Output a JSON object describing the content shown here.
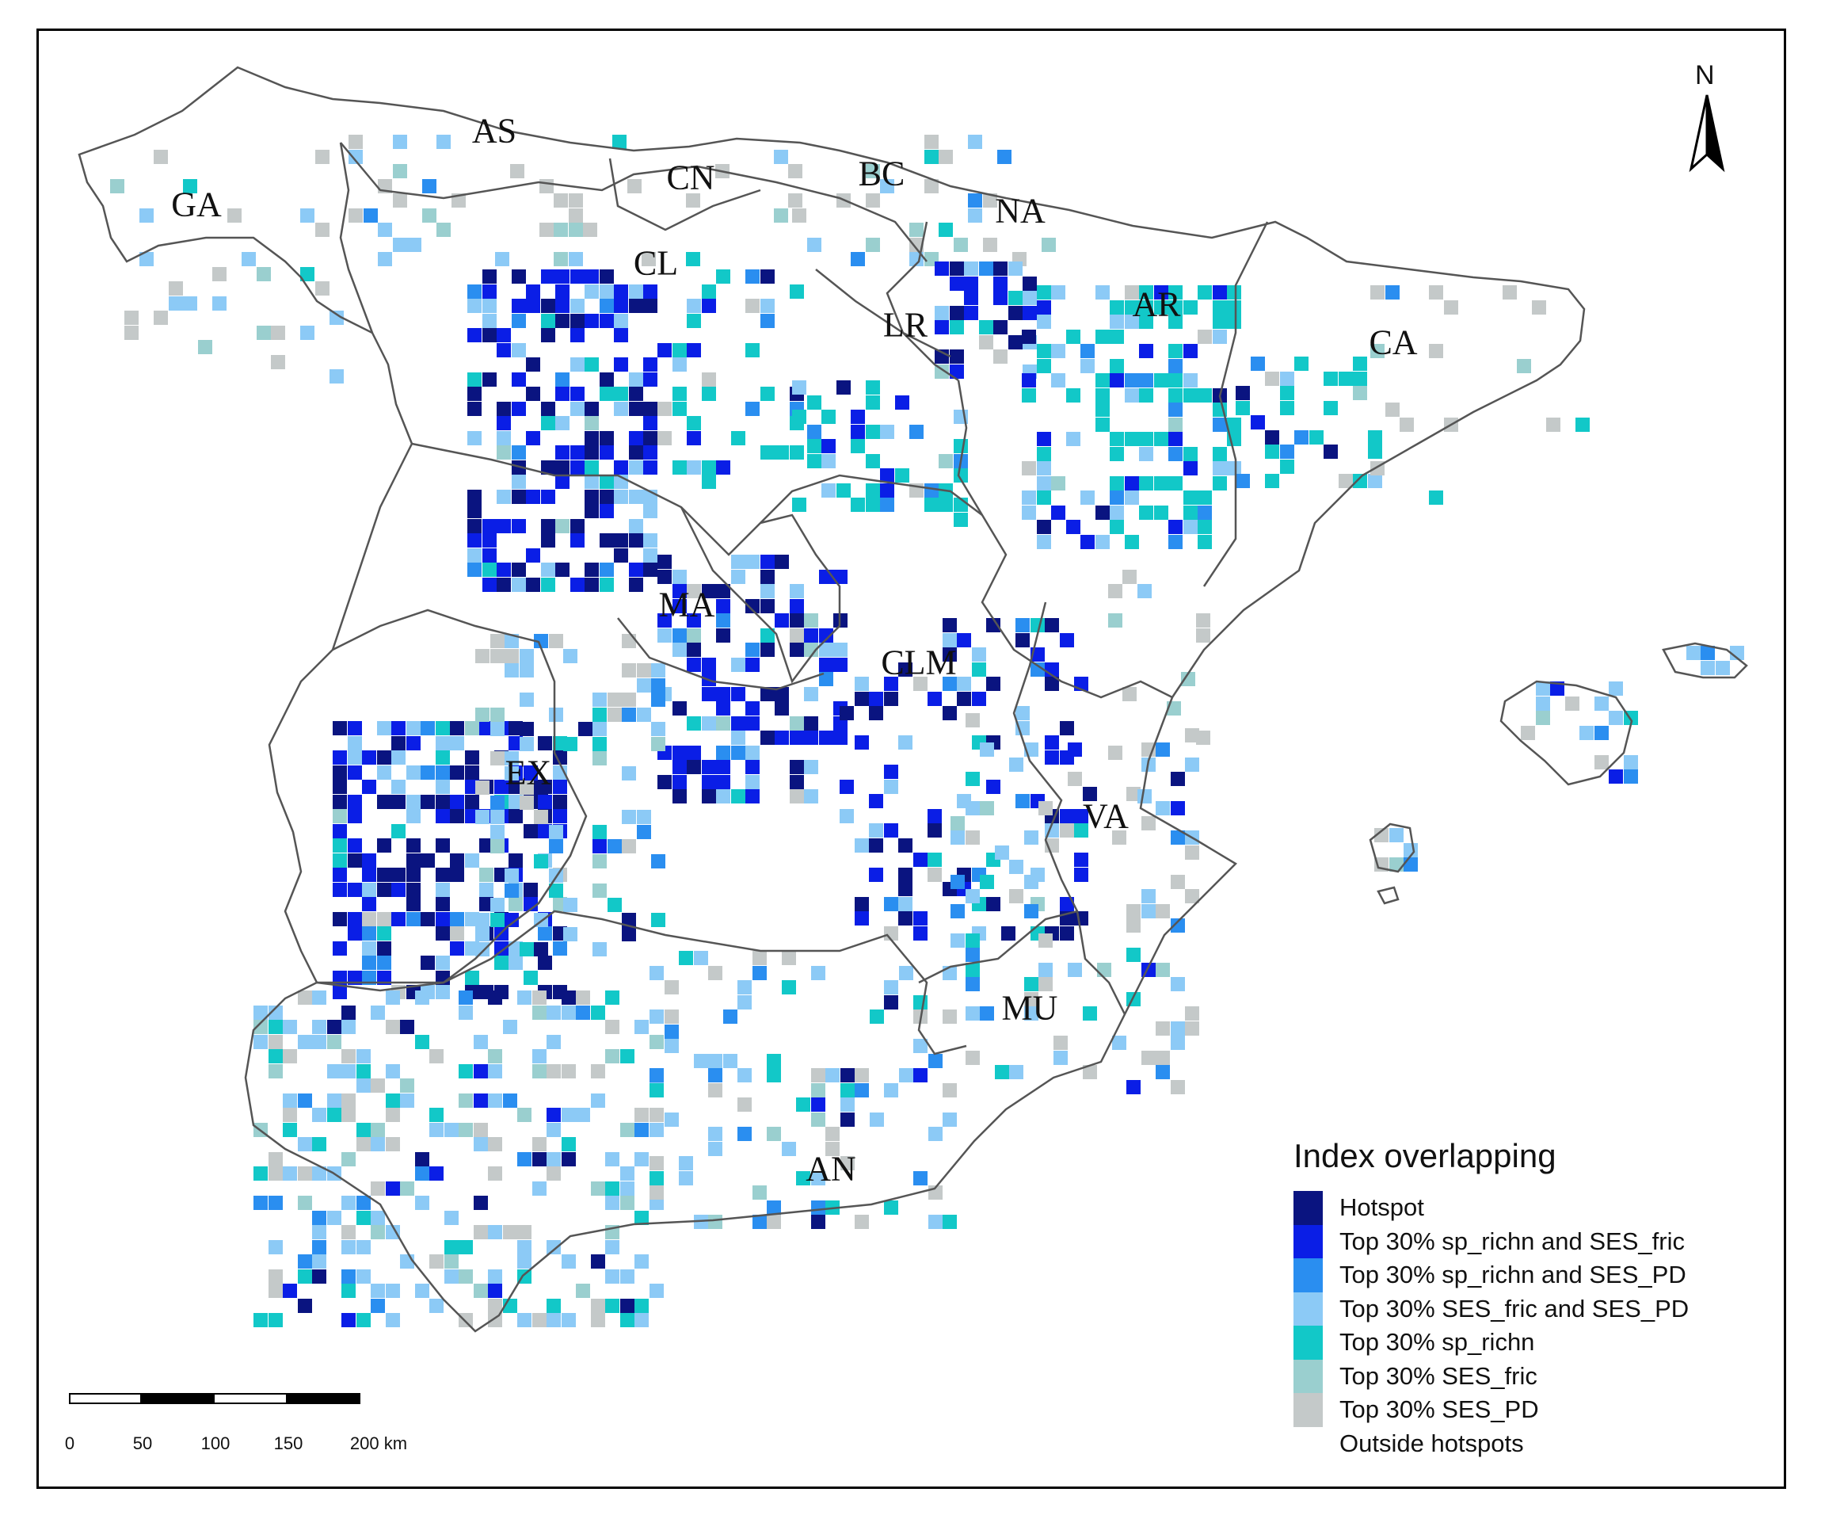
{
  "map": {
    "north_label": "N",
    "region_labels": [
      {
        "id": "ga",
        "text": "GA"
      },
      {
        "id": "as",
        "text": "AS"
      },
      {
        "id": "cn",
        "text": "CN"
      },
      {
        "id": "bc",
        "text": "BC"
      },
      {
        "id": "na",
        "text": "NA"
      },
      {
        "id": "cl",
        "text": "CL"
      },
      {
        "id": "lr",
        "text": "LR"
      },
      {
        "id": "ar",
        "text": "AR"
      },
      {
        "id": "ca",
        "text": "CA"
      },
      {
        "id": "ma",
        "text": "MA"
      },
      {
        "id": "clm",
        "text": "CLM"
      },
      {
        "id": "ex",
        "text": "EX"
      },
      {
        "id": "va",
        "text": "VA"
      },
      {
        "id": "mu",
        "text": "MU"
      },
      {
        "id": "an",
        "text": "AN"
      }
    ]
  },
  "legend": {
    "title": "Index overlapping",
    "items": [
      {
        "label": "Hotspot",
        "color": "#0a1480"
      },
      {
        "label": "Top 30% sp_richn and SES_fric",
        "color": "#0a1ee6"
      },
      {
        "label": "Top 30% sp_richn and SES_PD",
        "color": "#2a8ef0"
      },
      {
        "label": "Top 30% SES_fric and SES_PD",
        "color": "#8ccaf6"
      },
      {
        "label": "Top 30% sp_richn",
        "color": "#12c8c8"
      },
      {
        "label": "Top 30% SES_fric",
        "color": "#9acfcf"
      },
      {
        "label": "Top 30% SES_PD",
        "color": "#c4c9c9"
      },
      {
        "label": "Outside hotspots",
        "color": "#ffffff"
      }
    ]
  },
  "scalebar": {
    "ticks": [
      "0",
      "50",
      "100",
      "150",
      "200 km"
    ]
  }
}
